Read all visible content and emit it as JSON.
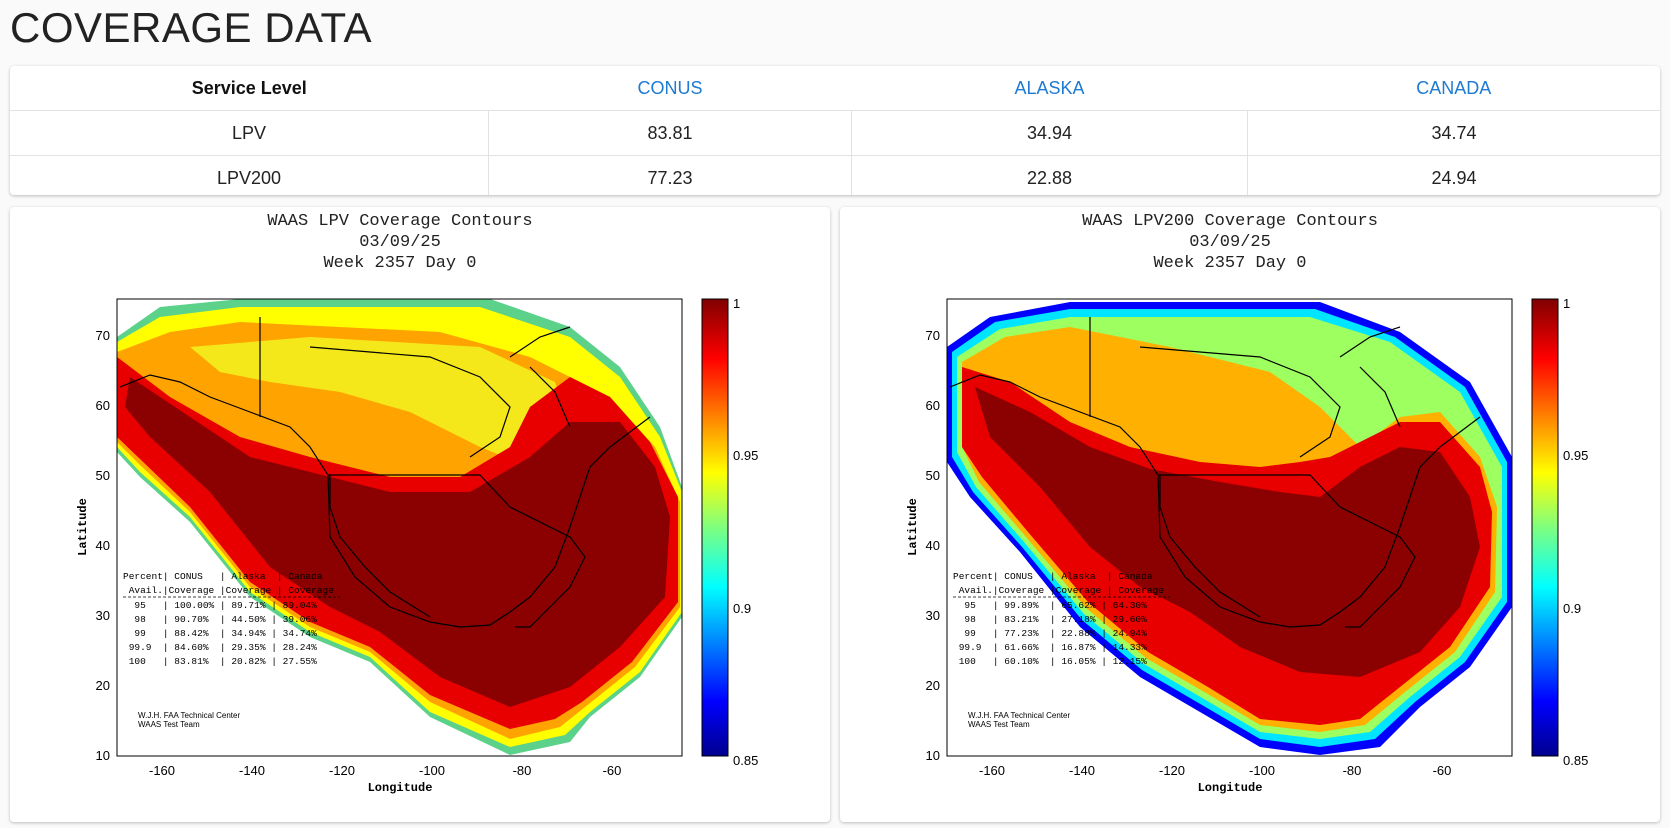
{
  "page": {
    "title": "COVERAGE DATA"
  },
  "table": {
    "headers": [
      "Service Level",
      "CONUS",
      "ALASKA",
      "CANADA"
    ],
    "rows": [
      [
        "LPV",
        "83.81",
        "34.94",
        "34.74"
      ],
      [
        "LPV200",
        "77.23",
        "22.88",
        "24.94"
      ]
    ],
    "header_region_color": "#1e7ad2"
  },
  "maps": [
    {
      "title_lines": [
        "WAAS LPV Coverage Contours",
        "03/09/25",
        "Week 2357 Day 0"
      ],
      "xlabel": "Longitude",
      "ylabel": "Latitude",
      "x_ticks": [
        "-160",
        "-140",
        "-120",
        "-100",
        "-80",
        "-60"
      ],
      "y_ticks": [
        "70",
        "60",
        "50",
        "40",
        "30",
        "20",
        "10"
      ],
      "colorbar_ticks": [
        "1",
        "0.95",
        "0.9",
        "0.85"
      ],
      "stats_header": [
        "Percent| CONUS   | Alaska  | Canada",
        " Avail.|Coverage |Coverage | Coverage"
      ],
      "stats_rows": [
        "  95   | 100.00% | 89.71% | 89.04%",
        "  98   | 90.70%  | 44.50% | 39.06%",
        "  99   | 88.42%  | 34.94% | 34.74%",
        " 99.9  | 84.60%  | 29.35% | 28.24%",
        " 100   | 83.81%  | 20.82% | 27.55%"
      ],
      "credit": [
        "W.J.H. FAA Technical Center",
        "WAAS Test Team"
      ]
    },
    {
      "title_lines": [
        "WAAS LPV200 Coverage Contours",
        "03/09/25",
        "Week 2357 Day 0"
      ],
      "xlabel": "Longitude",
      "ylabel": "Latitude",
      "x_ticks": [
        "-160",
        "-140",
        "-120",
        "-100",
        "-80",
        "-60"
      ],
      "y_ticks": [
        "70",
        "60",
        "50",
        "40",
        "30",
        "20",
        "10"
      ],
      "colorbar_ticks": [
        "1",
        "0.95",
        "0.9",
        "0.85"
      ],
      "stats_header": [
        "Percent| CONUS   | Alaska  | Canada",
        " Avail.|Coverage |Coverage | Coverage"
      ],
      "stats_rows": [
        "  95   | 99.89%  | 65.62% | 64.30%",
        "  98   | 83.21%  | 27.18% | 29.60%",
        "  99   | 77.23%  | 22.88% | 24.94%",
        " 99.9  | 61.66%  | 16.87% | 14.33%",
        " 100   | 60.10%  | 16.05% | 12.15%"
      ],
      "credit": [
        "W.J.H. FAA Technical Center",
        "WAAS Test Team"
      ]
    }
  ]
}
